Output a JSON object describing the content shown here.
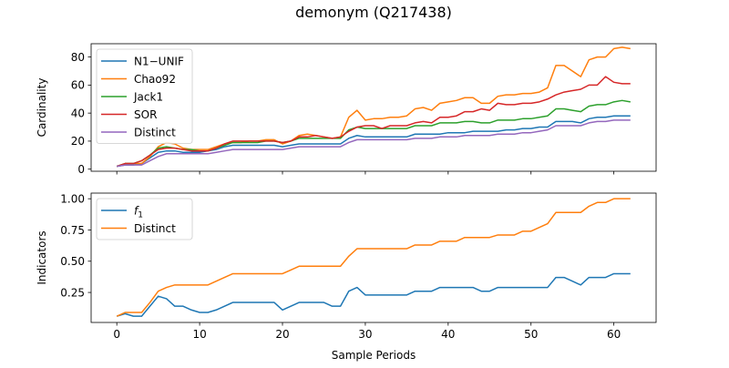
{
  "figure": {
    "title": "demonym (Q217438)",
    "shared_xlabel": "Sample Periods"
  },
  "chart_data": [
    {
      "type": "line",
      "ylabel": "Cardinality",
      "xlim": [
        -3.1,
        65.1
      ],
      "ylim": [
        -1.5,
        89.5
      ],
      "x_ticks": [
        0,
        10,
        20,
        30,
        40,
        50,
        60
      ],
      "y_ticks": [
        0,
        20,
        40,
        60,
        80
      ],
      "show_x_tick_labels": false,
      "legend": "top-left",
      "grid": false,
      "series": [
        {
          "name": "N1−UNIF",
          "color": "#1f77b4",
          "values": [
            2,
            3,
            3,
            4,
            8,
            12,
            13,
            13,
            12,
            12,
            12,
            13,
            14,
            16,
            17,
            17,
            17,
            17,
            17,
            17,
            16,
            17,
            18,
            18,
            18,
            18,
            18,
            18,
            22,
            24,
            23,
            23,
            23,
            23,
            23,
            23,
            25,
            25,
            25,
            25,
            26,
            26,
            26,
            27,
            27,
            27,
            27,
            28,
            28,
            29,
            29,
            30,
            30,
            34,
            34,
            34,
            33,
            36,
            37,
            37,
            38,
            38,
            38
          ]
        },
        {
          "name": "Chao92",
          "color": "#ff7f0e",
          "values": [
            2,
            4,
            4,
            4,
            9,
            16,
            19,
            18,
            15,
            14,
            14,
            14,
            16,
            18,
            19,
            19,
            20,
            20,
            21,
            21,
            18,
            20,
            24,
            25,
            24,
            23,
            22,
            23,
            37,
            42,
            35,
            36,
            36,
            37,
            37,
            38,
            43,
            44,
            42,
            47,
            48,
            49,
            51,
            51,
            47,
            47,
            52,
            53,
            53,
            54,
            54,
            55,
            58,
            74,
            74,
            70,
            66,
            78,
            80,
            80,
            86,
            87,
            86
          ]
        },
        {
          "name": "Jack1",
          "color": "#2ca02c",
          "values": [
            2,
            4,
            4,
            6,
            10,
            15,
            16,
            15,
            14,
            14,
            13,
            13,
            15,
            17,
            19,
            19,
            19,
            19,
            20,
            20,
            19,
            20,
            22,
            22,
            22,
            22,
            22,
            22,
            28,
            30,
            29,
            29,
            29,
            29,
            29,
            29,
            31,
            31,
            31,
            33,
            33,
            33,
            34,
            34,
            33,
            33,
            35,
            35,
            35,
            36,
            36,
            37,
            38,
            43,
            43,
            42,
            41,
            45,
            46,
            46,
            48,
            49,
            48
          ]
        },
        {
          "name": "SOR",
          "color": "#d62728",
          "values": [
            2,
            4,
            4,
            6,
            10,
            14,
            15,
            15,
            14,
            13,
            13,
            13,
            15,
            18,
            20,
            20,
            20,
            20,
            20,
            20,
            19,
            20,
            23,
            23,
            24,
            23,
            22,
            23,
            27,
            30,
            31,
            31,
            29,
            31,
            31,
            31,
            33,
            34,
            33,
            37,
            37,
            38,
            41,
            41,
            43,
            42,
            47,
            46,
            46,
            47,
            47,
            48,
            50,
            53,
            55,
            56,
            57,
            60,
            60,
            66,
            62,
            61,
            61
          ]
        },
        {
          "name": "Distinct",
          "color": "#9467bd",
          "values": [
            2,
            3,
            3,
            3,
            6,
            9,
            11,
            11,
            11,
            11,
            11,
            11,
            12,
            13,
            14,
            14,
            14,
            14,
            14,
            14,
            14,
            15,
            16,
            16,
            16,
            16,
            16,
            16,
            19,
            21,
            21,
            21,
            21,
            21,
            21,
            21,
            22,
            22,
            22,
            23,
            23,
            23,
            24,
            24,
            24,
            24,
            25,
            25,
            25,
            26,
            26,
            27,
            28,
            31,
            31,
            31,
            31,
            33,
            34,
            34,
            35,
            35,
            35
          ]
        }
      ]
    },
    {
      "type": "line",
      "ylabel": "Indicators",
      "xlabel": "Sample Periods",
      "xlim": [
        -3.1,
        65.1
      ],
      "ylim": [
        0.01,
        1.045
      ],
      "x_ticks": [
        0,
        10,
        20,
        30,
        40,
        50,
        60
      ],
      "y_ticks": [
        0.25,
        0.5,
        0.75,
        1.0
      ],
      "y_tick_labels": [
        "0.25",
        "0.50",
        "0.75",
        "1.00"
      ],
      "legend": "top-left",
      "grid": false,
      "series": [
        {
          "name": "f1",
          "legend_label": "f",
          "legend_sub": "1",
          "color": "#1f77b4",
          "values": [
            0.06,
            0.08,
            0.06,
            0.06,
            0.14,
            0.22,
            0.2,
            0.14,
            0.14,
            0.11,
            0.09,
            0.09,
            0.11,
            0.14,
            0.17,
            0.17,
            0.17,
            0.17,
            0.17,
            0.17,
            0.11,
            0.14,
            0.17,
            0.17,
            0.17,
            0.17,
            0.14,
            0.14,
            0.26,
            0.29,
            0.23,
            0.23,
            0.23,
            0.23,
            0.23,
            0.23,
            0.26,
            0.26,
            0.26,
            0.29,
            0.29,
            0.29,
            0.29,
            0.29,
            0.26,
            0.26,
            0.29,
            0.29,
            0.29,
            0.29,
            0.29,
            0.29,
            0.29,
            0.37,
            0.37,
            0.34,
            0.31,
            0.37,
            0.37,
            0.37,
            0.4,
            0.4,
            0.4
          ]
        },
        {
          "name": "Distinct",
          "legend_label": "Distinct",
          "legend_sub": "",
          "color": "#ff7f0e",
          "values": [
            0.06,
            0.09,
            0.09,
            0.09,
            0.17,
            0.26,
            0.29,
            0.31,
            0.31,
            0.31,
            0.31,
            0.31,
            0.34,
            0.37,
            0.4,
            0.4,
            0.4,
            0.4,
            0.4,
            0.4,
            0.4,
            0.43,
            0.46,
            0.46,
            0.46,
            0.46,
            0.46,
            0.46,
            0.54,
            0.6,
            0.6,
            0.6,
            0.6,
            0.6,
            0.6,
            0.6,
            0.63,
            0.63,
            0.63,
            0.66,
            0.66,
            0.66,
            0.69,
            0.69,
            0.69,
            0.69,
            0.71,
            0.71,
            0.71,
            0.74,
            0.74,
            0.77,
            0.8,
            0.89,
            0.89,
            0.89,
            0.89,
            0.94,
            0.97,
            0.97,
            1.0,
            1.0,
            1.0
          ]
        }
      ]
    }
  ]
}
